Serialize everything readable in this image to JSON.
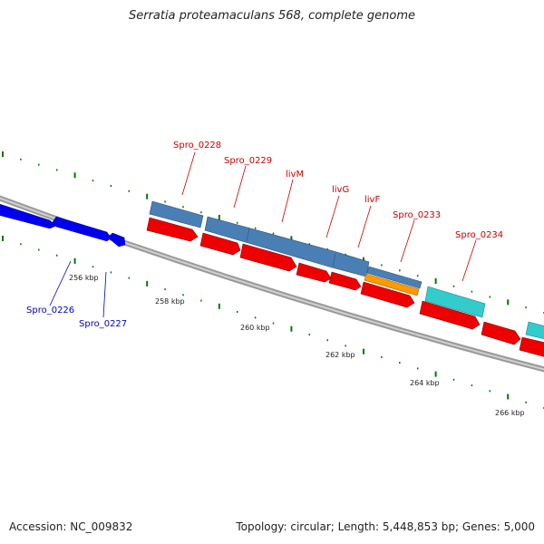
{
  "title": "Serratia proteamaculans 568, complete genome",
  "footer": {
    "accession": "Accession: NC_009832",
    "stats": "Topology: circular; Length: 5,448,853 bp; Genes: 5,000"
  },
  "colors": {
    "backbone": "#888888",
    "forward_cds": "#4a7fb5",
    "forward_cyan": "#33cccc",
    "forward_orange": "#ff9900",
    "reverse_red": "#ee0000",
    "reverse_blue": "#0000ee",
    "tick": "#007700",
    "label_red": "#cc0000",
    "label_blue": "#0000cc"
  },
  "kbp_ticks": [
    "256 kbp",
    "258 kbp",
    "260 kbp",
    "262 kbp",
    "264 kbp",
    "266 kbp"
  ],
  "gene_labels_top": [
    "Spro_0228",
    "Spro_0229",
    "livM",
    "livG",
    "livF",
    "Spro_0233",
    "Spro_0234"
  ],
  "gene_labels_bottom": [
    "Spro_0226",
    "Spro_0227"
  ]
}
